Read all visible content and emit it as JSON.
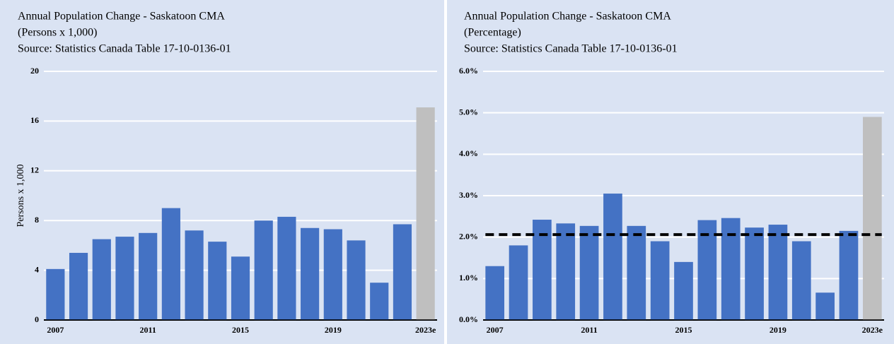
{
  "chart_data": [
    {
      "type": "bar",
      "title": "Annual Population Change - Saskatoon CMA",
      "subtitle": "(Persons x 1,000)",
      "source": "Source: Statistics Canada Table   17-10-0136-01",
      "ylabel": "Persons x 1,000",
      "categories": [
        "2007",
        null,
        null,
        null,
        "2011",
        null,
        null,
        null,
        "2015",
        null,
        null,
        null,
        "2019",
        null,
        null,
        null,
        "2023e"
      ],
      "values": [
        4.1,
        5.4,
        6.5,
        6.7,
        7.0,
        9.0,
        7.2,
        6.3,
        5.1,
        8.0,
        8.3,
        7.4,
        7.3,
        6.4,
        3.0,
        7.7,
        17.1
      ],
      "colors": [
        "#4472c4",
        "#4472c4",
        "#4472c4",
        "#4472c4",
        "#4472c4",
        "#4472c4",
        "#4472c4",
        "#4472c4",
        "#4472c4",
        "#4472c4",
        "#4472c4",
        "#4472c4",
        "#4472c4",
        "#4472c4",
        "#4472c4",
        "#4472c4",
        "#bfbfbf"
      ],
      "ylim": [
        0,
        20
      ],
      "yticks": [
        0,
        4,
        8,
        12,
        16,
        20
      ],
      "grid": true
    },
    {
      "type": "bar",
      "title": "Annual Population Change - Saskatoon CMA",
      "subtitle": "(Percentage)",
      "source": "Source: Statistics Canada Table   17-10-0136-01",
      "categories": [
        "2007",
        null,
        null,
        null,
        "2011",
        null,
        null,
        null,
        "2015",
        null,
        null,
        null,
        "2019",
        null,
        null,
        null,
        "2023e"
      ],
      "values": [
        1.3,
        1.8,
        2.42,
        2.33,
        2.27,
        3.05,
        2.27,
        1.9,
        1.4,
        2.41,
        2.46,
        2.23,
        2.3,
        1.9,
        0.66,
        2.15,
        4.9
      ],
      "colors": [
        "#4472c4",
        "#4472c4",
        "#4472c4",
        "#4472c4",
        "#4472c4",
        "#4472c4",
        "#4472c4",
        "#4472c4",
        "#4472c4",
        "#4472c4",
        "#4472c4",
        "#4472c4",
        "#4472c4",
        "#4472c4",
        "#4472c4",
        "#4472c4",
        "#bfbfbf"
      ],
      "hline": {
        "value": 2.06,
        "color": "#000000",
        "dashed": true
      },
      "ylim": [
        0,
        6
      ],
      "yticks": [
        {
          "value": 0,
          "label": "0.0%"
        },
        {
          "value": 1,
          "label": "1.0%"
        },
        {
          "value": 2,
          "label": "2.0%"
        },
        {
          "value": 3,
          "label": "3.0%"
        },
        {
          "value": 4,
          "label": "4.0%"
        },
        {
          "value": 5,
          "label": "5.0%"
        },
        {
          "value": 6,
          "label": "6.0%"
        }
      ],
      "grid": true
    }
  ]
}
